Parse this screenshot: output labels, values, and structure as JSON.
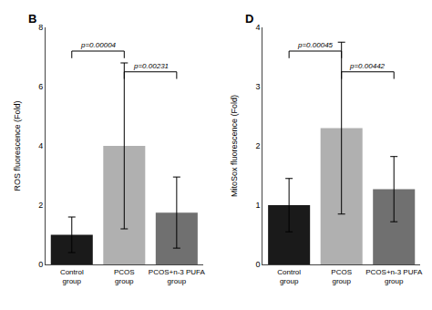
{
  "chart_data": [
    {
      "type": "bar",
      "title": "B",
      "categories": [
        "Control group",
        "PCOS group",
        "PCOS+n-3 PUFA group"
      ],
      "values": [
        1.0,
        4.0,
        1.75
      ],
      "errors": [
        0.6,
        2.8,
        1.2
      ],
      "colors": [
        "#1a1a1a",
        "#b0b0b0",
        "#707070"
      ],
      "ylabel": "ROS fluorescence (Fold)",
      "ylim": [
        0,
        8
      ],
      "yticks": [
        0,
        2,
        4,
        6,
        8
      ],
      "grid": false,
      "annotations": [
        {
          "text": "p=0.00004",
          "x1": "Control group",
          "x2": "PCOS group",
          "y": 7.2
        },
        {
          "text": "p=0.00231",
          "x1": "PCOS group",
          "x2": "PCOS+n-3 PUFA group",
          "y": 6.5
        }
      ]
    },
    {
      "type": "bar",
      "title": "D",
      "categories": [
        "Control group",
        "PCOS group",
        "PCOS+n-3 PUFA group"
      ],
      "values": [
        1.0,
        2.3,
        1.27
      ],
      "errors": [
        0.45,
        1.45,
        0.55
      ],
      "colors": [
        "#1a1a1a",
        "#b0b0b0",
        "#707070"
      ],
      "ylabel": "MitoSox fluorescence (Fold)",
      "ylim": [
        0,
        4
      ],
      "yticks": [
        0,
        1,
        2,
        3,
        4
      ],
      "grid": false,
      "annotations": [
        {
          "text": "p=0.00045",
          "x1": "Control group",
          "x2": "PCOS group",
          "y": 3.6
        },
        {
          "text": "p=0.00442",
          "x1": "PCOS group",
          "x2": "PCOS+n-3 PUFA group",
          "y": 3.25
        }
      ]
    }
  ]
}
